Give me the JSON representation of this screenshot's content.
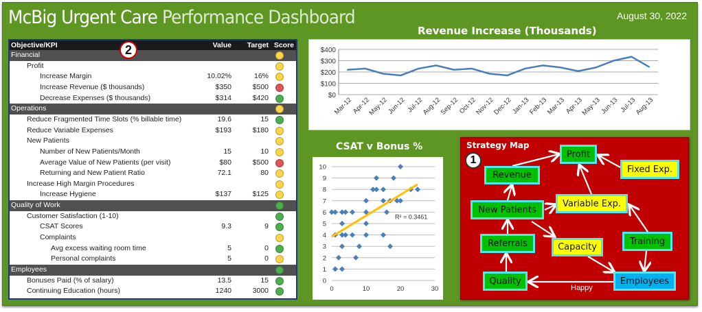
{
  "header": {
    "title_part1": "McBig Urgent Care",
    "title_part2": "Performance Dashboard",
    "date": "August 30, 2022"
  },
  "kpi_table": {
    "badge": "2",
    "columns": [
      "Objective/KPI",
      "Value",
      "Target",
      "Score"
    ],
    "colors": {
      "green": "#4caf50",
      "yellow": "#ffd54a",
      "red": "#e05555"
    },
    "rows": [
      {
        "name": "Financial",
        "level": 0,
        "section": true,
        "value": "",
        "target": "",
        "score": "yellow"
      },
      {
        "name": "Profit",
        "level": 1,
        "value": "",
        "target": "",
        "score": "yellow"
      },
      {
        "name": "Increase Margin",
        "level": 2,
        "value": "10.02%",
        "target": "16%",
        "score": "yellow"
      },
      {
        "name": "Increase Revenue ($ thousands)",
        "level": 2,
        "value": "$350",
        "target": "$500",
        "score": "red"
      },
      {
        "name": "Decrease Expenses ($ thousands)",
        "level": 2,
        "value": "$314",
        "target": "$420",
        "score": "green"
      },
      {
        "name": "Operations",
        "level": 0,
        "section": true,
        "value": "",
        "target": "",
        "score": "yellow"
      },
      {
        "name": "Reduce Fragmented Time Slots (% billable time)",
        "level": 1,
        "value": "19.6",
        "target": "15",
        "score": "green"
      },
      {
        "name": "Reduce Variable Expenses",
        "level": 1,
        "value": "$193",
        "target": "$180",
        "score": "yellow"
      },
      {
        "name": "New Patients",
        "level": 1,
        "value": "",
        "target": "",
        "score": "yellow"
      },
      {
        "name": "Number of New Patients/Month",
        "level": 2,
        "value": "15",
        "target": "10",
        "score": "yellow"
      },
      {
        "name": "Average Value of New Patients (per visit)",
        "level": 2,
        "value": "$80",
        "target": "$500",
        "score": "red"
      },
      {
        "name": "Returning and New Patient Ratio",
        "level": 2,
        "value": "72.1",
        "target": "80",
        "score": "yellow"
      },
      {
        "name": "Increase High Margin Procedures",
        "level": 1,
        "value": "",
        "target": "",
        "score": "yellow"
      },
      {
        "name": "Increase Hygiene",
        "level": 2,
        "value": "$137",
        "target": "$125",
        "score": "yellow"
      },
      {
        "name": "Quality of Work",
        "level": 0,
        "section": true,
        "value": "",
        "target": "",
        "score": "green"
      },
      {
        "name": "Customer Satisfaction (1-10)",
        "level": 1,
        "value": "",
        "target": "",
        "score": "green"
      },
      {
        "name": "CSAT Scores",
        "level": 2,
        "value": "9.3",
        "target": "9",
        "score": "green"
      },
      {
        "name": "Complaints",
        "level": 2,
        "value": "",
        "target": "",
        "score": "yellow"
      },
      {
        "name": "Avg excess waiting room time",
        "level": 3,
        "value": "5",
        "target": "0",
        "score": "green"
      },
      {
        "name": "Personal complaints",
        "level": 3,
        "value": "5",
        "target": "0",
        "score": "yellow"
      },
      {
        "name": "Employees",
        "level": 0,
        "section": true,
        "value": "",
        "target": "",
        "score": "green"
      },
      {
        "name": "Bonuses Paid (% of salary)",
        "level": 1,
        "value": "13.5",
        "target": "15",
        "score": "green"
      },
      {
        "name": "Continuing Education (hours)",
        "level": 1,
        "value": "1240",
        "target": "3000",
        "score": "green"
      }
    ]
  },
  "chart_data": [
    {
      "type": "line",
      "title": "Revenue Increase (Thousands)",
      "xlabel": "",
      "ylabel": "",
      "categories": [
        "Mar-12",
        "Apr-12",
        "May-12",
        "Jun-12",
        "Jul-12",
        "Aug-12",
        "Sep-12",
        "Oct-12",
        "Nov-12",
        "Dec-12",
        "Jan-13",
        "Feb-13",
        "Mar-13",
        "Apr-13",
        "May-13",
        "Jun-13",
        "Jul-13",
        "Aug-13"
      ],
      "values": [
        220,
        230,
        185,
        170,
        230,
        258,
        220,
        230,
        185,
        170,
        230,
        258,
        240,
        208,
        240,
        300,
        335,
        245
      ],
      "ylim": [
        0,
        400
      ],
      "yticks": [
        0,
        100,
        200,
        300,
        400
      ],
      "ytick_labels": [
        "$0",
        "$100",
        "$200",
        "$300",
        "$400"
      ],
      "grid": true,
      "color": "#4a7ebb"
    },
    {
      "type": "scatter",
      "title": "CSAT v Bonus %",
      "xlim": [
        0,
        30
      ],
      "ylim": [
        0,
        10
      ],
      "xticks": [
        0,
        10,
        20,
        30
      ],
      "yticks": [
        0,
        1,
        2,
        3,
        4,
        5,
        6,
        7,
        8,
        9,
        10
      ],
      "grid": true,
      "color": "#4a7ebb",
      "points": [
        [
          0,
          6
        ],
        [
          1,
          6
        ],
        [
          1,
          4
        ],
        [
          1,
          1
        ],
        [
          2,
          2
        ],
        [
          3,
          1
        ],
        [
          3,
          3
        ],
        [
          3,
          4
        ],
        [
          3,
          5
        ],
        [
          3,
          6
        ],
        [
          4,
          6
        ],
        [
          4,
          4
        ],
        [
          6,
          6
        ],
        [
          6,
          4
        ],
        [
          7,
          2
        ],
        [
          8,
          3
        ],
        [
          10,
          7
        ],
        [
          10,
          6
        ],
        [
          10,
          5
        ],
        [
          10,
          4
        ],
        [
          12,
          8
        ],
        [
          13,
          8
        ],
        [
          13,
          9
        ],
        [
          15,
          8
        ],
        [
          15,
          7
        ],
        [
          15,
          4
        ],
        [
          16,
          6
        ],
        [
          17,
          7
        ],
        [
          17,
          3
        ],
        [
          18,
          9
        ],
        [
          19,
          7
        ],
        [
          20,
          7
        ],
        [
          20,
          10
        ],
        [
          23,
          8
        ],
        [
          25,
          8
        ]
      ],
      "trendline": {
        "x": [
          0,
          25
        ],
        "y": [
          3.85,
          8.45
        ],
        "color": "#ffc000",
        "label": "R² = 0.3461"
      }
    }
  ],
  "strategy_map": {
    "title": "Strategy Map",
    "badge": "1",
    "nodes": {
      "profit": "Profit",
      "fixed": "Fixed Exp.",
      "revenue": "Revenue",
      "new_patients": "New Patients",
      "variable": "Variable Exp.",
      "referrals": "Referrals",
      "capacity": "Capacity",
      "training": "Training",
      "quality": "Quality",
      "employees": "Employees"
    },
    "edge_label": "Happy"
  }
}
